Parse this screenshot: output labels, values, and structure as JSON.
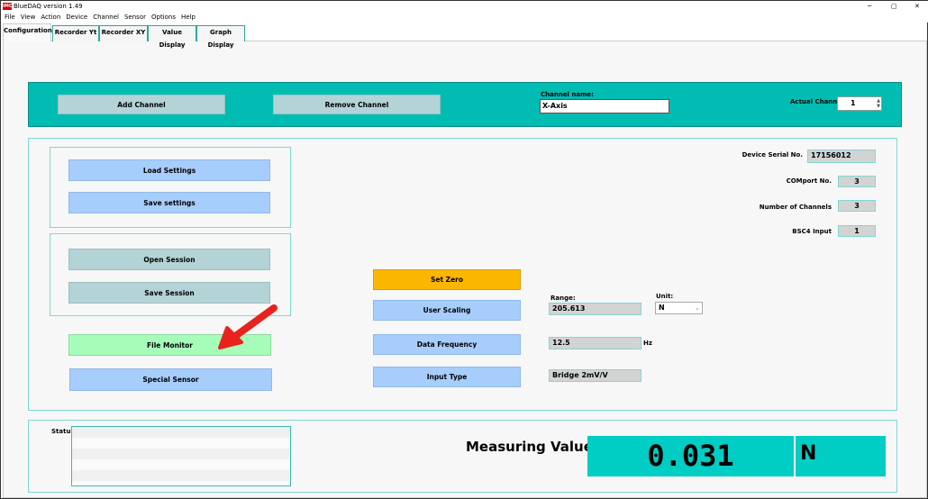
{
  "window": {
    "title": "BlueDAQ version 1.49",
    "logo": "IMC"
  },
  "menu": [
    "File",
    "View",
    "Action",
    "Device",
    "Channel",
    "Sensor",
    "Options",
    "Help"
  ],
  "tabs": [
    "Configuration",
    "Recorder Yt",
    "Recorder XY",
    "Value Display",
    "Graph Display"
  ],
  "band": {
    "add_channel": "Add Channel",
    "remove_channel": "Remove Channel",
    "channel_name_label": "Channel name:",
    "channel_name_value": "X-Axis",
    "actual_channel_label": "Actual Channel",
    "actual_channel_value": "1"
  },
  "left": {
    "load_settings": "Load Settings",
    "save_settings": "Save settings",
    "open_session": "Open Session",
    "save_session": "Save Session",
    "file_monitor": "File Monitor",
    "special_sensor": "Special Sensor"
  },
  "middle": {
    "set_zero": "Set Zero",
    "user_scaling": "User Scaling",
    "data_frequency": "Data Frequency",
    "input_type": "Input Type",
    "range_label": "Range:",
    "range_value": "205.613",
    "unit_label": "Unit:",
    "unit_value": "N",
    "frequency_value": "12.5",
    "frequency_unit": "Hz",
    "input_type_value": "Bridge 2mV/V"
  },
  "device": {
    "serial_label": "Device Serial No.",
    "serial_value": "17156012",
    "comport_label": "COMport No.",
    "comport_value": "3",
    "channels_label": "Number of Channels",
    "channels_value": "3",
    "bsc4_label": "BSC4 Input",
    "bsc4_value": "1"
  },
  "status": {
    "label": "Status",
    "measuring_label": "Measuring Value",
    "measuring_value": "0.031",
    "measuring_unit": "N"
  },
  "colors": {
    "teal": "#00bcb2",
    "arrow": "#e8231e",
    "set_zero": "#fbb700"
  }
}
